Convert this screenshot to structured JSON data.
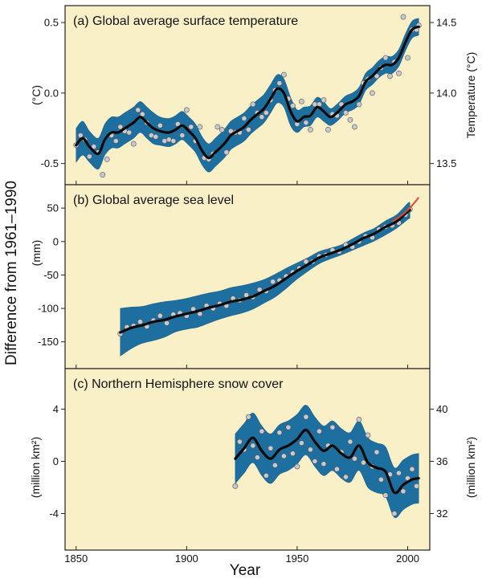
{
  "y_axis_label": "Difference from 1961–1990",
  "x_axis_label": "Year",
  "colors": {
    "panel_background": "#faf0c8",
    "uncertainty_band": "#1d6fa0",
    "smoothed_line": "#0a0a0a",
    "annual_points": "#c8c8d0",
    "satellite_line": "#e2462a"
  },
  "chart_data": [
    {
      "type": "line",
      "title": "(a) Global average surface temperature",
      "ylabel": "(°C)",
      "ylabel_right": "Temperature (°C)",
      "xlim": [
        1845,
        2010
      ],
      "ylim": [
        -0.65,
        0.62
      ],
      "y_ticks": [
        -0.5,
        0.0,
        0.5
      ],
      "y_tick_labels": [
        "-0.5",
        "0.0",
        "0.5"
      ],
      "right_ticks": [
        13.5,
        14.0,
        14.5
      ],
      "right_tick_labels": [
        "13.5",
        "14.0",
        "14.5"
      ],
      "right_offset": 14.0,
      "grid": false,
      "series": [
        {
          "x": [
            1850,
            1853,
            1856,
            1860,
            1863,
            1866,
            1869,
            1872,
            1876,
            1879,
            1882,
            1885,
            1888,
            1892,
            1895,
            1898,
            1901,
            1904,
            1907,
            1910,
            1913,
            1917,
            1920,
            1923,
            1926,
            1929,
            1932,
            1935,
            1938,
            1941,
            1944,
            1947,
            1950,
            1953,
            1956,
            1959,
            1962,
            1965,
            1968,
            1972,
            1975,
            1978,
            1981,
            1984,
            1987,
            1990,
            1993,
            1996,
            1999,
            2002,
            2005
          ],
          "y": [
            -0.37,
            -0.32,
            -0.38,
            -0.43,
            -0.33,
            -0.28,
            -0.28,
            -0.25,
            -0.21,
            -0.17,
            -0.21,
            -0.25,
            -0.27,
            -0.28,
            -0.26,
            -0.23,
            -0.27,
            -0.32,
            -0.41,
            -0.46,
            -0.42,
            -0.36,
            -0.3,
            -0.27,
            -0.24,
            -0.19,
            -0.15,
            -0.11,
            -0.04,
            0.03,
            0.0,
            -0.13,
            -0.2,
            -0.17,
            -0.16,
            -0.1,
            -0.13,
            -0.17,
            -0.14,
            -0.08,
            -0.06,
            -0.02,
            0.08,
            0.12,
            0.17,
            0.2,
            0.2,
            0.25,
            0.36,
            0.45,
            0.47
          ],
          "band_halfwidth": [
            0.12,
            0.12,
            0.11,
            0.11,
            0.11,
            0.11,
            0.11,
            0.11,
            0.11,
            0.11,
            0.11,
            0.11,
            0.1,
            0.1,
            0.1,
            0.1,
            0.1,
            0.1,
            0.1,
            0.1,
            0.1,
            0.1,
            0.1,
            0.1,
            0.1,
            0.1,
            0.1,
            0.1,
            0.1,
            0.1,
            0.1,
            0.1,
            0.08,
            0.07,
            0.07,
            0.07,
            0.07,
            0.06,
            0.06,
            0.06,
            0.06,
            0.06,
            0.06,
            0.06,
            0.06,
            0.06,
            0.06,
            0.06,
            0.06,
            0.06,
            0.06
          ]
        },
        {
          "name": "annual values",
          "x": [
            1850,
            1852,
            1854,
            1856,
            1858,
            1860,
            1862,
            1864,
            1866,
            1868,
            1870,
            1872,
            1874,
            1876,
            1878,
            1880,
            1882,
            1884,
            1886,
            1888,
            1890,
            1892,
            1894,
            1896,
            1898,
            1900,
            1902,
            1904,
            1906,
            1908,
            1910,
            1912,
            1914,
            1916,
            1918,
            1920,
            1922,
            1924,
            1926,
            1928,
            1930,
            1932,
            1934,
            1936,
            1938,
            1940,
            1942,
            1944,
            1946,
            1948,
            1950,
            1952,
            1954,
            1956,
            1958,
            1960,
            1962,
            1964,
            1966,
            1968,
            1970,
            1972,
            1974,
            1976,
            1978,
            1980,
            1982,
            1984,
            1986,
            1988,
            1990,
            1992,
            1994,
            1996,
            1998,
            2000,
            2002,
            2004,
            2005
          ],
          "y": [
            -0.37,
            -0.3,
            -0.33,
            -0.45,
            -0.38,
            -0.42,
            -0.58,
            -0.47,
            -0.3,
            -0.34,
            -0.24,
            -0.27,
            -0.28,
            -0.36,
            -0.12,
            -0.15,
            -0.21,
            -0.3,
            -0.31,
            -0.23,
            -0.34,
            -0.33,
            -0.34,
            -0.22,
            -0.3,
            -0.12,
            -0.24,
            -0.34,
            -0.24,
            -0.46,
            -0.47,
            -0.43,
            -0.24,
            -0.26,
            -0.42,
            -0.27,
            -0.28,
            -0.28,
            -0.18,
            -0.26,
            -0.08,
            -0.14,
            -0.17,
            -0.14,
            -0.05,
            0.02,
            0.07,
            0.13,
            -0.04,
            -0.09,
            -0.22,
            -0.06,
            -0.21,
            -0.26,
            -0.08,
            -0.08,
            -0.05,
            -0.26,
            -0.15,
            -0.16,
            -0.08,
            -0.14,
            -0.19,
            -0.24,
            -0.08,
            0.07,
            0.1,
            0.0,
            0.12,
            0.18,
            0.25,
            0.12,
            0.22,
            0.14,
            0.54,
            0.25,
            0.45,
            0.45,
            0.48
          ]
        }
      ]
    },
    {
      "type": "line",
      "title": "(b) Global average sea level",
      "ylabel": "(mm)",
      "xlim": [
        1845,
        2010
      ],
      "ylim": [
        -190,
        85
      ],
      "y_ticks": [
        -150,
        -100,
        -50,
        0,
        50
      ],
      "y_tick_labels": [
        "-150",
        "-100",
        "-50",
        "0",
        "50"
      ],
      "grid": false,
      "series": [
        {
          "x": [
            1870,
            1875,
            1880,
            1885,
            1890,
            1895,
            1900,
            1905,
            1910,
            1915,
            1920,
            1925,
            1930,
            1935,
            1940,
            1945,
            1950,
            1955,
            1960,
            1965,
            1970,
            1975,
            1980,
            1985,
            1990,
            1995,
            2000,
            2001
          ],
          "y": [
            -136,
            -129,
            -125,
            -120,
            -117,
            -112,
            -108,
            -104,
            -99,
            -95,
            -90,
            -87,
            -82,
            -74,
            -66,
            -55,
            -44,
            -34,
            -24,
            -18,
            -12,
            -4,
            5,
            12,
            22,
            30,
            45,
            47
          ],
          "band_lower": [
            -171,
            -160,
            -152,
            -148,
            -143,
            -135,
            -131,
            -128,
            -122,
            -116,
            -111,
            -107,
            -101,
            -92,
            -83,
            -70,
            -56,
            -44,
            -33,
            -26,
            -20,
            -13,
            -6,
            1,
            10,
            20,
            33,
            35
          ],
          "band_upper": [
            -100,
            -98,
            -97,
            -93,
            -90,
            -88,
            -85,
            -81,
            -77,
            -74,
            -69,
            -66,
            -62,
            -57,
            -49,
            -40,
            -32,
            -24,
            -15,
            -10,
            -5,
            4,
            13,
            20,
            31,
            40,
            57,
            58
          ]
        },
        {
          "name": "annual values",
          "x": [
            1870,
            1873,
            1876,
            1879,
            1882,
            1885,
            1888,
            1891,
            1894,
            1897,
            1900,
            1903,
            1906,
            1909,
            1912,
            1915,
            1918,
            1921,
            1924,
            1927,
            1930,
            1933,
            1936,
            1939,
            1942,
            1945,
            1948,
            1951,
            1954,
            1957,
            1960,
            1963,
            1966,
            1969,
            1972,
            1975,
            1978,
            1981,
            1984,
            1987,
            1990,
            1993,
            1996,
            1999,
            2001
          ],
          "y": [
            -138,
            -128,
            -126,
            -120,
            -127,
            -118,
            -111,
            -122,
            -109,
            -107,
            -111,
            -101,
            -108,
            -96,
            -100,
            -93,
            -96,
            -85,
            -88,
            -80,
            -83,
            -72,
            -74,
            -60,
            -58,
            -52,
            -46,
            -40,
            -30,
            -30,
            -22,
            -20,
            -13,
            -15,
            -5,
            -8,
            0,
            8,
            6,
            18,
            22,
            24,
            28,
            40,
            48
          ]
        },
        {
          "name": "satellite",
          "x": [
            1993,
            1996,
            1999,
            2002,
            2005
          ],
          "y": [
            30,
            36,
            44,
            54,
            66
          ]
        }
      ]
    },
    {
      "type": "line",
      "title": "(c) Northern Hemisphere snow cover",
      "ylabel": "(million km²)",
      "ylabel_right": "(million km²)",
      "xlim": [
        1845,
        2010
      ],
      "ylim": [
        -6.8,
        7.1
      ],
      "y_ticks": [
        -4,
        0,
        4
      ],
      "y_tick_labels": [
        "-4",
        "0",
        "4"
      ],
      "right_ticks": [
        32,
        36,
        40
      ],
      "right_tick_labels": [
        "32",
        "36",
        "40"
      ],
      "right_offset": 36,
      "grid": false,
      "series": [
        {
          "x": [
            1922,
            1926,
            1930,
            1934,
            1938,
            1942,
            1946,
            1950,
            1954,
            1958,
            1962,
            1966,
            1970,
            1974,
            1978,
            1982,
            1986,
            1990,
            1994,
            1998,
            2002,
            2005
          ],
          "y": [
            0.2,
            1.0,
            1.8,
            0.8,
            0.2,
            0.9,
            1.2,
            1.7,
            2.4,
            1.5,
            0.8,
            1.2,
            0.6,
            0.3,
            1.2,
            -0.1,
            -0.5,
            -0.8,
            -2.4,
            -1.8,
            -1.4,
            -1.3
          ],
          "band_halfwidth": [
            1.9,
            1.9,
            1.9,
            1.9,
            1.9,
            1.9,
            1.9,
            1.9,
            1.9,
            1.9,
            1.9,
            1.9,
            1.9,
            1.9,
            1.9,
            1.9,
            1.9,
            1.9,
            1.9,
            1.9,
            1.9,
            1.9
          ]
        },
        {
          "name": "annual values",
          "x": [
            1922,
            1924,
            1926,
            1928,
            1930,
            1932,
            1934,
            1936,
            1938,
            1940,
            1942,
            1944,
            1946,
            1948,
            1950,
            1952,
            1954,
            1956,
            1958,
            1960,
            1962,
            1964,
            1966,
            1968,
            1970,
            1972,
            1974,
            1976,
            1978,
            1980,
            1982,
            1984,
            1986,
            1988,
            1990,
            1992,
            1994,
            1996,
            1998,
            2000,
            2002,
            2004
          ],
          "y": [
            -1.9,
            1.5,
            0.9,
            3.4,
            1.2,
            0.3,
            2.3,
            -1.1,
            1.0,
            -0.3,
            2.2,
            0.4,
            2.6,
            0.6,
            -0.4,
            1.4,
            3.4,
            0.9,
            0.0,
            2.3,
            -0.2,
            1.2,
            2.6,
            -0.6,
            0.7,
            -1.2,
            1.5,
            0.2,
            3.2,
            -0.1,
            2.0,
            -0.4,
            0.7,
            -1.4,
            -2.6,
            -1.0,
            -4.0,
            -0.9,
            -2.3,
            -1.3,
            -0.6,
            -1.9
          ]
        }
      ]
    }
  ]
}
